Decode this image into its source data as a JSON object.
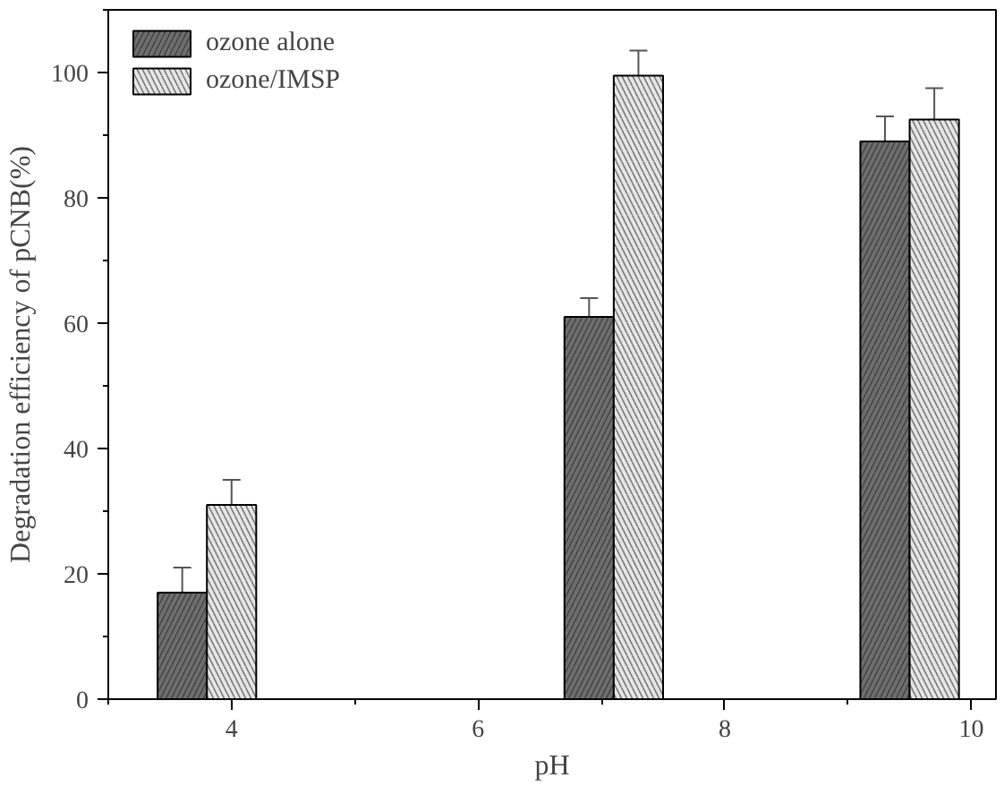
{
  "chart_data": {
    "type": "bar",
    "xlabel": "pH",
    "ylabel": "Degradation efficiency of pCNB(%)",
    "series": [
      {
        "name": "ozone alone",
        "color": "#6e6e6e",
        "x": [
          3.6,
          6.9,
          9.3
        ],
        "values": [
          17,
          61,
          89
        ],
        "errors": [
          4,
          3,
          4
        ]
      },
      {
        "name": "ozone/IMSP",
        "color": "#e6e6e6",
        "x": [
          4.0,
          7.3,
          9.7
        ],
        "values": [
          31,
          99.5,
          92.5
        ],
        "errors": [
          4,
          4,
          5
        ]
      }
    ],
    "xlim": [
      3,
      10.2
    ],
    "xticks": [
      4,
      6,
      8,
      10
    ],
    "ylim": [
      0,
      110
    ],
    "yticks": [
      0,
      20,
      40,
      60,
      80,
      100
    ],
    "grid": false,
    "legend": "top left"
  }
}
